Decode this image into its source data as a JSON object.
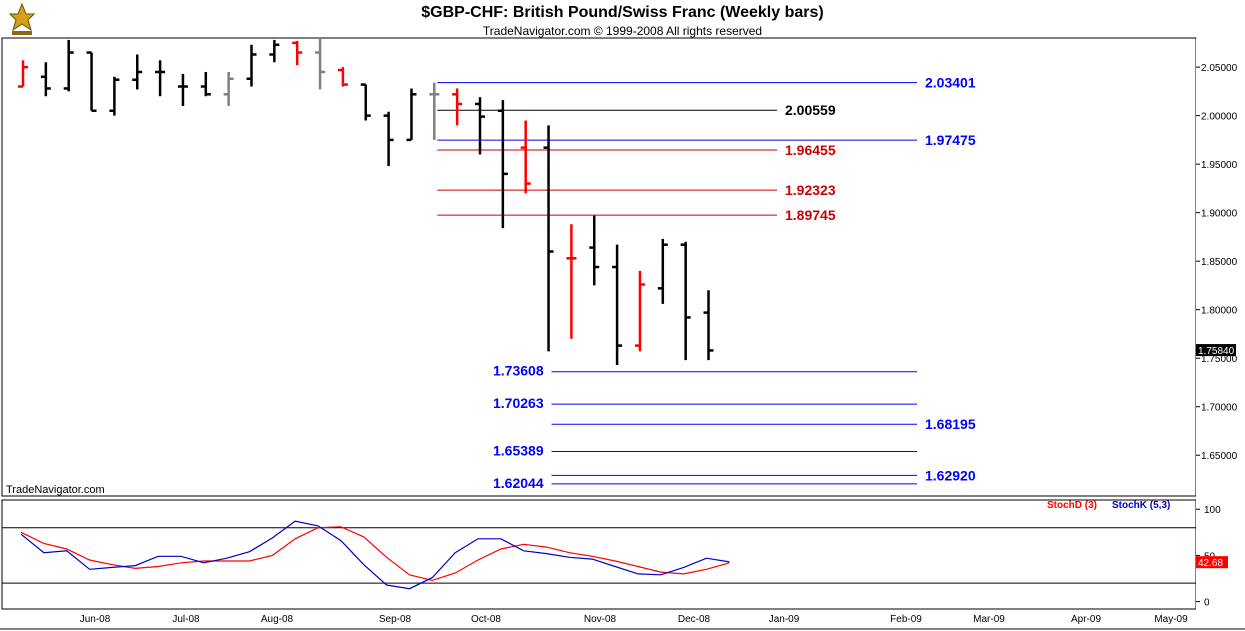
{
  "header": {
    "title": "$GBP-CHF:  British Pound/Swiss Franc  (Weekly bars)",
    "subtitle": "TradeNavigator.com © 1999-2008 All rights reserved",
    "watermark": "TradeNavigator.com"
  },
  "colors": {
    "bar_up": "#000000",
    "bar_down": "#ff0000",
    "bar_gray": "#808080",
    "level_blue": "#0000ff",
    "level_red": "#cc0000",
    "level_black": "#000000",
    "stoch_d": "#ff0000",
    "stoch_k": "#0000cc",
    "axis": "#000000",
    "last_price_bg": "#000000",
    "stoch_value_bg": "#ff0000"
  },
  "chart_data": [
    {
      "type": "ohlc",
      "title": "$GBP-CHF:  British Pound/Swiss Franc  (Weekly bars)",
      "ylim": [
        1.608,
        2.08
      ],
      "y_ticks": [
        "2.05000",
        "2.00000",
        "1.95000",
        "1.90000",
        "1.85000",
        "1.80000",
        "1.75000",
        "1.70000",
        "1.65000"
      ],
      "x_ticks": [
        "Jun-08",
        "Jul-08",
        "Aug-08",
        "Sep-08",
        "Oct-08",
        "Nov-08",
        "Dec-08",
        "Jan-09",
        "Feb-09",
        "Mar-09",
        "Apr-09",
        "May-09"
      ],
      "last_price": "1.75840",
      "bars": [
        {
          "i": 1,
          "o": 2.03,
          "h": 2.057,
          "l": 2.03,
          "c": 2.05,
          "color": "down"
        },
        {
          "i": 2,
          "o": 2.04,
          "h": 2.055,
          "l": 2.02,
          "c": 2.028,
          "color": "up"
        },
        {
          "i": 3,
          "o": 2.028,
          "h": 2.078,
          "l": 2.025,
          "c": 2.065,
          "color": "up"
        },
        {
          "i": 4,
          "o": 2.065,
          "h": 2.065,
          "l": 2.005,
          "c": 2.005,
          "color": "up"
        },
        {
          "i": 5,
          "o": 2.005,
          "h": 2.04,
          "l": 2.0,
          "c": 2.037,
          "color": "up"
        },
        {
          "i": 6,
          "o": 2.037,
          "h": 2.063,
          "l": 2.027,
          "c": 2.045,
          "color": "up"
        },
        {
          "i": 7,
          "o": 2.045,
          "h": 2.057,
          "l": 2.02,
          "c": 2.045,
          "color": "up"
        },
        {
          "i": 8,
          "o": 2.03,
          "h": 2.043,
          "l": 2.01,
          "c": 2.03,
          "color": "up"
        },
        {
          "i": 9,
          "o": 2.03,
          "h": 2.045,
          "l": 2.02,
          "c": 2.022,
          "color": "up"
        },
        {
          "i": 10,
          "o": 2.022,
          "h": 2.045,
          "l": 2.01,
          "c": 2.038,
          "color": "gray"
        },
        {
          "i": 11,
          "o": 2.038,
          "h": 2.073,
          "l": 2.03,
          "c": 2.063,
          "color": "up"
        },
        {
          "i": 12,
          "o": 2.063,
          "h": 2.078,
          "l": 2.055,
          "c": 2.073,
          "color": "up"
        },
        {
          "i": 13,
          "o": 2.075,
          "h": 2.077,
          "l": 2.052,
          "c": 2.065,
          "color": "down"
        },
        {
          "i": 14,
          "o": 2.065,
          "h": 2.08,
          "l": 2.027,
          "c": 2.045,
          "color": "gray"
        },
        {
          "i": 15,
          "o": 2.047,
          "h": 2.05,
          "l": 2.03,
          "c": 2.032,
          "color": "down"
        },
        {
          "i": 16,
          "o": 2.032,
          "h": 2.032,
          "l": 1.995,
          "c": 2.0,
          "color": "up"
        },
        {
          "i": 17,
          "o": 2.0,
          "h": 2.004,
          "l": 1.948,
          "c": 1.975,
          "color": "up"
        },
        {
          "i": 18,
          "o": 1.975,
          "h": 2.028,
          "l": 1.975,
          "c": 2.022,
          "color": "up"
        },
        {
          "i": 19,
          "o": 2.022,
          "h": 2.034,
          "l": 1.975,
          "c": 2.022,
          "color": "gray"
        },
        {
          "i": 20,
          "o": 2.022,
          "h": 2.028,
          "l": 1.99,
          "c": 2.012,
          "color": "down"
        },
        {
          "i": 21,
          "o": 2.012,
          "h": 2.019,
          "l": 1.96,
          "c": 1.999,
          "color": "up"
        },
        {
          "i": 22,
          "o": 2.005,
          "h": 2.016,
          "l": 1.884,
          "c": 1.94,
          "color": "up"
        },
        {
          "i": 23,
          "o": 1.967,
          "h": 1.995,
          "l": 1.92,
          "c": 1.93,
          "color": "down"
        },
        {
          "i": 24,
          "o": 1.967,
          "h": 1.99,
          "l": 1.757,
          "c": 1.86,
          "color": "up"
        },
        {
          "i": 25,
          "o": 1.853,
          "h": 1.888,
          "l": 1.77,
          "c": 1.853,
          "color": "down"
        },
        {
          "i": 26,
          "o": 1.864,
          "h": 1.897,
          "l": 1.825,
          "c": 1.844,
          "color": "up"
        },
        {
          "i": 27,
          "o": 1.844,
          "h": 1.867,
          "l": 1.743,
          "c": 1.763,
          "color": "up"
        },
        {
          "i": 28,
          "o": 1.763,
          "h": 1.84,
          "l": 1.757,
          "c": 1.826,
          "color": "down"
        },
        {
          "i": 29,
          "o": 1.822,
          "h": 1.873,
          "l": 1.806,
          "c": 1.867,
          "color": "up"
        },
        {
          "i": 30,
          "o": 1.867,
          "h": 1.87,
          "l": 1.748,
          "c": 1.792,
          "color": "up"
        },
        {
          "i": 31,
          "o": 1.797,
          "h": 1.82,
          "l": 1.748,
          "c": 1.758,
          "color": "up"
        }
      ],
      "levels": [
        {
          "label": "2.03401",
          "value": 2.03401,
          "color": "blue",
          "from": 19,
          "to": 32,
          "label_side": "right"
        },
        {
          "label": "2.00559",
          "value": 2.00559,
          "color": "black",
          "from": 19,
          "to": 27.5,
          "label_side": "right"
        },
        {
          "label": "1.97475",
          "value": 1.97475,
          "color": "blue",
          "from": 19,
          "to": 32,
          "label_side": "right"
        },
        {
          "label": "1.96455",
          "value": 1.96455,
          "color": "red",
          "from": 19,
          "to": 27.5,
          "label_side": "right"
        },
        {
          "label": "1.92323",
          "value": 1.92323,
          "color": "red",
          "from": 19,
          "to": 27.5,
          "label_side": "right"
        },
        {
          "label": "1.89745",
          "value": 1.89745,
          "color": "red",
          "from": 19,
          "to": 27.5,
          "label_side": "right"
        },
        {
          "label": "1.73608",
          "value": 1.73608,
          "color": "blue",
          "from": 24,
          "to": 32,
          "label_side": "left"
        },
        {
          "label": "1.70263",
          "value": 1.70263,
          "color": "blue",
          "from": 24,
          "to": 32,
          "label_side": "left"
        },
        {
          "label": "1.68195",
          "value": 1.68195,
          "color": "blue",
          "from": 24,
          "to": 32,
          "label_side": "right"
        },
        {
          "label": "1.65389",
          "value": 1.65389,
          "color": "blue",
          "from": 24,
          "to": 32,
          "label_side": "left"
        },
        {
          "label": "1.62920",
          "value": 1.6292,
          "color": "blue",
          "from": 24,
          "to": 32,
          "label_side": "right"
        },
        {
          "label": "1.62044",
          "value": 1.62044,
          "color": "blue",
          "from": 24,
          "to": 32,
          "label_side": "left"
        }
      ]
    },
    {
      "type": "line",
      "ylim": [
        -8,
        110
      ],
      "y_ticks": [
        "100",
        "50",
        "0"
      ],
      "reference_lines": [
        80,
        20
      ],
      "current_value": "42.68",
      "series": [
        {
          "name": "StochD (3)",
          "color": "red",
          "points": [
            [
              0,
              75
            ],
            [
              1,
              63
            ],
            [
              2,
              57
            ],
            [
              3,
              45
            ],
            [
              4,
              40
            ],
            [
              5,
              36
            ],
            [
              6,
              38
            ],
            [
              7,
              42
            ],
            [
              8,
              44
            ],
            [
              9,
              44
            ],
            [
              10,
              44
            ],
            [
              11,
              50
            ],
            [
              12,
              68
            ],
            [
              13,
              80
            ],
            [
              14,
              81
            ],
            [
              15,
              70
            ],
            [
              16,
              48
            ],
            [
              17,
              29
            ],
            [
              18,
              23
            ],
            [
              19,
              31
            ],
            [
              20,
              45
            ],
            [
              21,
              57
            ],
            [
              22,
              62
            ],
            [
              23,
              59
            ],
            [
              24,
              53
            ],
            [
              25,
              49
            ],
            [
              26,
              44
            ],
            [
              27,
              38
            ],
            [
              28,
              32
            ],
            [
              29,
              30
            ],
            [
              30,
              35
            ],
            [
              31,
              42
            ]
          ]
        },
        {
          "name": "StochK (5,3)",
          "color": "blue",
          "points": [
            [
              0,
              73
            ],
            [
              1,
              53
            ],
            [
              2,
              55
            ],
            [
              3,
              35
            ],
            [
              4,
              37
            ],
            [
              5,
              39
            ],
            [
              6,
              49
            ],
            [
              7,
              49
            ],
            [
              8,
              42
            ],
            [
              9,
              47
            ],
            [
              10,
              54
            ],
            [
              11,
              69
            ],
            [
              12,
              87
            ],
            [
              13,
              82
            ],
            [
              14,
              66
            ],
            [
              15,
              40
            ],
            [
              16,
              18
            ],
            [
              17,
              14
            ],
            [
              18,
              26
            ],
            [
              19,
              53
            ],
            [
              20,
              68
            ],
            [
              21,
              68
            ],
            [
              22,
              55
            ],
            [
              23,
              52
            ],
            [
              24,
              48
            ],
            [
              25,
              46
            ],
            [
              26,
              38
            ],
            [
              27,
              30
            ],
            [
              28,
              29
            ],
            [
              29,
              37
            ],
            [
              30,
              47
            ],
            [
              31,
              43
            ]
          ]
        }
      ]
    }
  ]
}
